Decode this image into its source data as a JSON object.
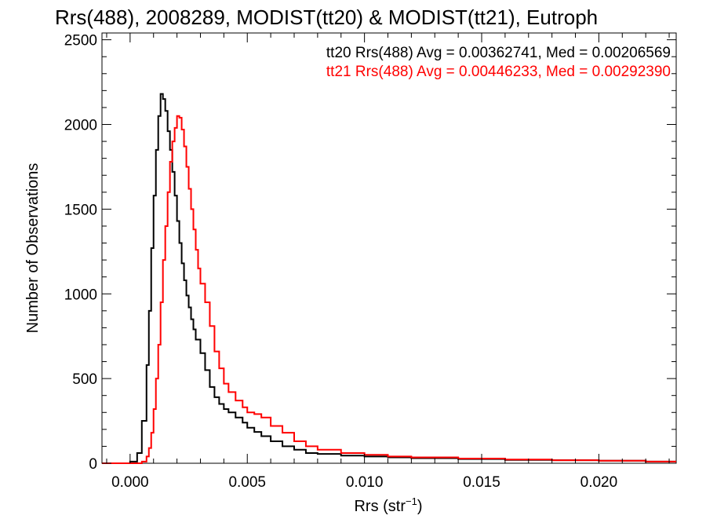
{
  "chart_data": {
    "type": "line",
    "title": "Rrs(488), 2008289, MODIST(tt20) & MODIST(tt21), Eutroph",
    "xlabel": "Rrs (str",
    "xlabel_sup": "−1",
    "xlabel_end": ")",
    "ylabel": "Number of Observations",
    "xlim": [
      -0.0012,
      0.0233
    ],
    "ylim": [
      0,
      2540
    ],
    "xticks": [
      0.0,
      0.005,
      0.01,
      0.015,
      0.02
    ],
    "xtick_labels": [
      "0.000",
      "0.005",
      "0.010",
      "0.015",
      "0.020"
    ],
    "yticks": [
      0,
      500,
      1000,
      1500,
      2000,
      2500
    ],
    "ytick_labels": [
      "0",
      "500",
      "1000",
      "1500",
      "2000",
      "2500"
    ],
    "legend_placement": "top-right",
    "series": [
      {
        "name": "tt20",
        "label": "tt20 Rrs(488) Avg = 0.00362741, Med = 0.00206569",
        "color": "#000000",
        "step": "post",
        "x": [
          -0.0012,
          0.0,
          0.0003,
          0.0005,
          0.0007,
          0.0008,
          0.0009,
          0.001,
          0.0011,
          0.0012,
          0.0013,
          0.0014,
          0.0015,
          0.0016,
          0.0017,
          0.0018,
          0.0019,
          0.002,
          0.0021,
          0.0022,
          0.0023,
          0.0024,
          0.0025,
          0.0026,
          0.0027,
          0.0028,
          0.003,
          0.0032,
          0.0034,
          0.0036,
          0.0038,
          0.004,
          0.0042,
          0.0045,
          0.0048,
          0.005,
          0.0053,
          0.0056,
          0.006,
          0.0065,
          0.007,
          0.0075,
          0.008,
          0.009,
          0.01,
          0.011,
          0.012,
          0.014,
          0.016,
          0.018,
          0.02,
          0.022
        ],
        "values": [
          0,
          10,
          60,
          250,
          580,
          900,
          1270,
          1580,
          1850,
          2050,
          2180,
          2150,
          2080,
          1960,
          1850,
          1720,
          1580,
          1430,
          1300,
          1180,
          1080,
          990,
          920,
          850,
          790,
          730,
          650,
          550,
          450,
          390,
          350,
          320,
          300,
          270,
          240,
          210,
          185,
          160,
          130,
          100,
          80,
          60,
          55,
          45,
          40,
          35,
          30,
          25,
          20,
          18,
          15,
          10
        ]
      },
      {
        "name": "tt21",
        "label": "tt21 Rrs(488) Avg = 0.00446233, Med = 0.00292390",
        "color": "#ff0000",
        "step": "post",
        "x": [
          -0.0012,
          0.0005,
          0.0007,
          0.0008,
          0.0009,
          0.001,
          0.0011,
          0.0012,
          0.0013,
          0.0014,
          0.0015,
          0.0016,
          0.0017,
          0.0018,
          0.0019,
          0.002,
          0.0021,
          0.0022,
          0.0023,
          0.0024,
          0.0025,
          0.0026,
          0.0027,
          0.0028,
          0.0029,
          0.003,
          0.0032,
          0.0034,
          0.0036,
          0.0038,
          0.004,
          0.0042,
          0.0045,
          0.0048,
          0.005,
          0.0053,
          0.0056,
          0.006,
          0.0065,
          0.007,
          0.0075,
          0.008,
          0.009,
          0.01,
          0.011,
          0.012,
          0.014,
          0.016,
          0.018,
          0.02,
          0.022
        ],
        "values": [
          0,
          10,
          40,
          90,
          180,
          320,
          500,
          700,
          950,
          1200,
          1400,
          1600,
          1780,
          1900,
          1980,
          2050,
          2040,
          1970,
          1870,
          1750,
          1620,
          1500,
          1380,
          1260,
          1150,
          1060,
          950,
          810,
          660,
          560,
          470,
          420,
          370,
          330,
          300,
          290,
          270,
          220,
          180,
          130,
          100,
          80,
          60,
          50,
          40,
          35,
          28,
          22,
          18,
          15,
          10
        ]
      }
    ]
  }
}
